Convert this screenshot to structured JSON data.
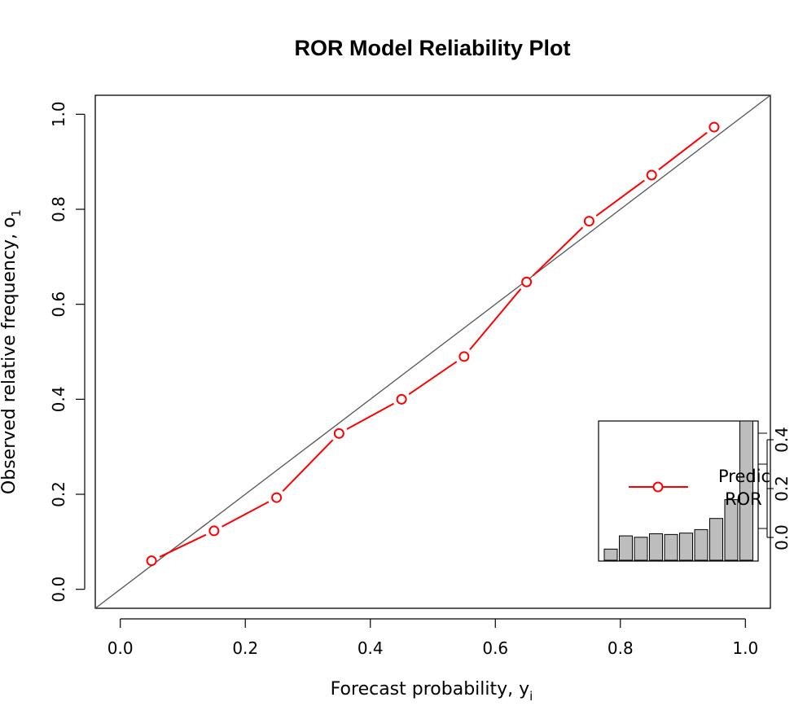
{
  "chart_data": {
    "type": "line",
    "title": "ROR Model Reliability Plot",
    "xlabel": "Forecast probability, y",
    "xlabel_sub": "i",
    "ylabel": "Observed relative frequency, o",
    "ylabel_sub": "1",
    "xlim": [
      -0.04,
      1.04
    ],
    "ylim": [
      -0.04,
      1.04
    ],
    "x_ticks": [
      "0.0",
      "0.2",
      "0.4",
      "0.6",
      "0.8",
      "1.0"
    ],
    "y_ticks": [
      "0.0",
      "0.2",
      "0.4",
      "0.6",
      "0.8",
      "1.0"
    ],
    "reference_line": [
      [
        -0.04,
        -0.04
      ],
      [
        1.04,
        1.04
      ]
    ],
    "series": [
      {
        "name": "Predic... ROR",
        "color": "#ff0000",
        "x": [
          0.05,
          0.15,
          0.25,
          0.35,
          0.45,
          0.55,
          0.65,
          0.75,
          0.85,
          0.95
        ],
        "y": [
          0.06,
          0.123,
          0.193,
          0.328,
          0.4,
          0.49,
          0.647,
          0.775,
          0.872,
          0.973
        ]
      }
    ],
    "legend": {
      "placement": "bottom-right",
      "line1": "Predic",
      "line2": "ROR"
    },
    "inset_histogram": {
      "values": [
        0.016,
        0.035,
        0.033,
        0.038,
        0.037,
        0.039,
        0.044,
        0.06,
        0.087,
        0.3
      ],
      "ylim": [
        0,
        0.2
      ],
      "y_ticks": [
        "0.0",
        "0.2",
        "0.4"
      ],
      "bar_color": "#bdbdbd"
    }
  }
}
